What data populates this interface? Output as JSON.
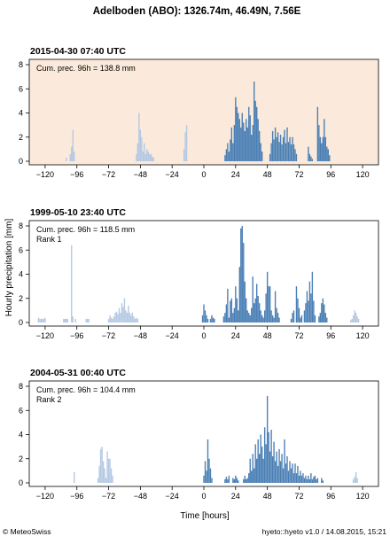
{
  "title": "Adelboden (ABO): 1326.74m, 46.49N, 7.56E",
  "ylabel": "Hourly precipitation [mm]",
  "xlabel": "Time [hours]",
  "footer_left": "© MeteoSwiss",
  "footer_right": "hyeto::hyeto v1.0 / 14.08.2015, 15:21",
  "colors": {
    "dark": "#4a7fb5",
    "light": "#b3c8e2",
    "panel_bg_highlight": "#fbeadb"
  },
  "chart_data": [
    {
      "type": "bar",
      "title": "2015-04-30 07:40 UTC",
      "annotation": "Cum. prec. 96h = 138.8 mm",
      "rank": "",
      "background": "#fbeadb",
      "xlim": [
        -132,
        132
      ],
      "ylim": [
        0,
        8
      ],
      "xticks": [
        -120,
        -96,
        -72,
        -48,
        -24,
        0,
        24,
        48,
        72,
        96,
        120
      ],
      "yticks": [
        0,
        2,
        4,
        6,
        8
      ],
      "light_bars": [
        [
          -104,
          0.3
        ],
        [
          -101,
          0.6
        ],
        [
          -100,
          1.2
        ],
        [
          -99,
          2.6
        ],
        [
          -98,
          0.8
        ],
        [
          -51,
          0.6
        ],
        [
          -50,
          1.5
        ],
        [
          -49,
          4.0
        ],
        [
          -48,
          2.6
        ],
        [
          -47,
          2.0
        ],
        [
          -46,
          0.8
        ],
        [
          -45,
          1.5
        ],
        [
          -44,
          0.6
        ],
        [
          -43,
          1.0
        ],
        [
          -42,
          0.8
        ],
        [
          -41,
          0.6
        ],
        [
          -40,
          0.6
        ],
        [
          -39,
          0.4
        ],
        [
          -38,
          0.3
        ],
        [
          -15,
          1.0
        ],
        [
          -14,
          2.4
        ],
        [
          -13,
          3.0
        ]
      ],
      "dark_bars": [
        [
          16,
          0.5
        ],
        [
          17,
          1.0
        ],
        [
          18,
          1.5
        ],
        [
          19,
          0.8
        ],
        [
          20,
          1.8
        ],
        [
          21,
          2.8
        ],
        [
          22,
          1.5
        ],
        [
          23,
          3.0
        ],
        [
          24,
          5.3
        ],
        [
          25,
          4.5
        ],
        [
          26,
          4.0
        ],
        [
          27,
          3.5
        ],
        [
          28,
          2.8
        ],
        [
          29,
          4.0
        ],
        [
          30,
          3.2
        ],
        [
          31,
          2.5
        ],
        [
          32,
          3.5
        ],
        [
          33,
          2.8
        ],
        [
          34,
          4.5
        ],
        [
          35,
          3.8
        ],
        [
          36,
          2.2
        ],
        [
          37,
          3.0
        ],
        [
          38,
          6.6
        ],
        [
          39,
          5.0
        ],
        [
          40,
          4.5
        ],
        [
          41,
          3.5
        ],
        [
          42,
          2.5
        ],
        [
          43,
          1.5
        ],
        [
          44,
          0.8
        ],
        [
          50,
          0.6
        ],
        [
          51,
          1.5
        ],
        [
          52,
          2.5
        ],
        [
          53,
          1.8
        ],
        [
          54,
          2.8
        ],
        [
          55,
          2.0
        ],
        [
          56,
          2.4
        ],
        [
          57,
          1.6
        ],
        [
          58,
          2.2
        ],
        [
          59,
          1.4
        ],
        [
          60,
          2.0
        ],
        [
          61,
          2.6
        ],
        [
          62,
          1.5
        ],
        [
          63,
          2.8
        ],
        [
          64,
          1.6
        ],
        [
          65,
          2.0
        ],
        [
          66,
          1.4
        ],
        [
          67,
          2.0
        ],
        [
          68,
          1.4
        ],
        [
          69,
          1.0
        ],
        [
          70,
          0.6
        ],
        [
          79,
          1.2
        ],
        [
          80,
          0.6
        ],
        [
          81,
          0.4
        ],
        [
          82,
          0.2
        ],
        [
          86,
          4.5
        ],
        [
          87,
          3.0
        ],
        [
          88,
          2.0
        ],
        [
          89,
          1.5
        ],
        [
          90,
          2.0
        ],
        [
          91,
          3.5
        ],
        [
          92,
          2.0
        ],
        [
          93,
          1.2
        ],
        [
          94,
          1.0
        ],
        [
          95,
          0.5
        ]
      ]
    },
    {
      "type": "bar",
      "title": "1999-05-10 23:40 UTC",
      "annotation": "Cum. prec. 96h = 118.5 mm",
      "rank": "Rank 1",
      "background": "#ffffff",
      "xlim": [
        -132,
        132
      ],
      "ylim": [
        0,
        8
      ],
      "xticks": [
        -120,
        -96,
        -72,
        -48,
        -24,
        0,
        24,
        48,
        72,
        96,
        120
      ],
      "yticks": [
        0,
        2,
        4,
        6,
        8
      ],
      "light_bars": [
        [
          -125,
          0.4
        ],
        [
          -124,
          0.3
        ],
        [
          -123,
          0.3
        ],
        [
          -122,
          0.3
        ],
        [
          -121,
          0.3
        ],
        [
          -120,
          0.4
        ],
        [
          -106,
          0.3
        ],
        [
          -105,
          0.3
        ],
        [
          -104,
          0.3
        ],
        [
          -103,
          0.3
        ],
        [
          -100,
          6.4
        ],
        [
          -99,
          0.5
        ],
        [
          -97,
          0.3
        ],
        [
          -89,
          0.3
        ],
        [
          -88,
          0.3
        ],
        [
          -87,
          0.3
        ],
        [
          -72,
          0.3
        ],
        [
          -71,
          0.6
        ],
        [
          -70,
          0.4
        ],
        [
          -69,
          0.3
        ],
        [
          -68,
          0.5
        ],
        [
          -67,
          0.8
        ],
        [
          -66,
          0.9
        ],
        [
          -65,
          0.7
        ],
        [
          -64,
          1.2
        ],
        [
          -63,
          0.8
        ],
        [
          -62,
          1.6
        ],
        [
          -61,
          1.3
        ],
        [
          -60,
          2.0
        ],
        [
          -59,
          1.0
        ],
        [
          -58,
          0.8
        ],
        [
          -57,
          1.4
        ],
        [
          -56,
          0.8
        ],
        [
          -55,
          0.6
        ],
        [
          -54,
          0.8
        ],
        [
          -53,
          0.5
        ],
        [
          -52,
          0.3
        ],
        [
          -51,
          0.4
        ],
        [
          -50,
          0.3
        ],
        [
          111,
          0.2
        ],
        [
          112,
          0.3
        ],
        [
          113,
          0.6
        ],
        [
          114,
          1.0
        ],
        [
          115,
          0.8
        ],
        [
          116,
          0.5
        ],
        [
          117,
          0.3
        ]
      ],
      "dark_bars": [
        [
          -1,
          0.6
        ],
        [
          0,
          1.5
        ],
        [
          1,
          1.0
        ],
        [
          2,
          0.6
        ],
        [
          3,
          0.3
        ],
        [
          5,
          0.3
        ],
        [
          6,
          0.6
        ],
        [
          7,
          0.4
        ],
        [
          8,
          0.3
        ],
        [
          15,
          0.5
        ],
        [
          16,
          0.8
        ],
        [
          17,
          1.5
        ],
        [
          18,
          2.8
        ],
        [
          19,
          0.4
        ],
        [
          20,
          1.8
        ],
        [
          21,
          2.0
        ],
        [
          22,
          0.8
        ],
        [
          23,
          1.2
        ],
        [
          24,
          3.0
        ],
        [
          25,
          2.0
        ],
        [
          26,
          1.0
        ],
        [
          27,
          4.6
        ],
        [
          28,
          7.8
        ],
        [
          29,
          8.0
        ],
        [
          30,
          6.6
        ],
        [
          31,
          3.4
        ],
        [
          32,
          2.0
        ],
        [
          33,
          1.0
        ],
        [
          34,
          0.8
        ],
        [
          35,
          0.6
        ],
        [
          36,
          1.2
        ],
        [
          37,
          3.8
        ],
        [
          38,
          1.6
        ],
        [
          39,
          2.0
        ],
        [
          40,
          3.2
        ],
        [
          41,
          2.2
        ],
        [
          42,
          1.6
        ],
        [
          43,
          1.0
        ],
        [
          44,
          0.6
        ],
        [
          45,
          0.4
        ],
        [
          46,
          1.0
        ],
        [
          47,
          2.4
        ],
        [
          48,
          4.2
        ],
        [
          49,
          3.0
        ],
        [
          50,
          3.0
        ],
        [
          51,
          1.0
        ],
        [
          52,
          0.6
        ],
        [
          53,
          0.4
        ],
        [
          54,
          2.6
        ],
        [
          55,
          1.2
        ],
        [
          56,
          0.8
        ],
        [
          57,
          0.4
        ],
        [
          66,
          0.3
        ],
        [
          67,
          0.8
        ],
        [
          68,
          1.0
        ],
        [
          70,
          3.0
        ],
        [
          71,
          2.0
        ],
        [
          72,
          1.2
        ],
        [
          73,
          0.4
        ],
        [
          74,
          0.6
        ],
        [
          76,
          1.0
        ],
        [
          77,
          1.6
        ],
        [
          78,
          2.6
        ],
        [
          79,
          1.8
        ],
        [
          80,
          3.4
        ],
        [
          81,
          2.4
        ],
        [
          82,
          4.2
        ],
        [
          83,
          1.8
        ],
        [
          84,
          0.6
        ],
        [
          87,
          0.5
        ],
        [
          88,
          0.8
        ],
        [
          89,
          1.6
        ],
        [
          90,
          2.0
        ],
        [
          91,
          1.5
        ],
        [
          92,
          0.8
        ],
        [
          93,
          0.4
        ]
      ]
    },
    {
      "type": "bar",
      "title": "2004-05-31 00:40 UTC",
      "annotation": "Cum. prec. 96h = 104.4 mm",
      "rank": "Rank 2",
      "background": "#ffffff",
      "xlim": [
        -132,
        132
      ],
      "ylim": [
        0,
        8
      ],
      "xticks": [
        -120,
        -96,
        -72,
        -48,
        -24,
        0,
        24,
        48,
        72,
        96,
        120
      ],
      "yticks": [
        0,
        2,
        4,
        6,
        8
      ],
      "light_bars": [
        [
          -98,
          0.9
        ],
        [
          -80,
          0.4
        ],
        [
          -79,
          1.4
        ],
        [
          -78,
          2.8
        ],
        [
          -77,
          3.0
        ],
        [
          -76,
          1.8
        ],
        [
          -75,
          1.2
        ],
        [
          -74,
          0.4
        ],
        [
          -73,
          2.6
        ],
        [
          -72,
          2.0
        ],
        [
          -71,
          2.0
        ],
        [
          -70,
          1.2
        ],
        [
          -69,
          0.6
        ],
        [
          113,
          0.3
        ],
        [
          114,
          0.5
        ],
        [
          115,
          0.9
        ],
        [
          116,
          0.4
        ]
      ],
      "dark_bars": [
        [
          0,
          0.6
        ],
        [
          1,
          1.8
        ],
        [
          2,
          1.0
        ],
        [
          3,
          3.6
        ],
        [
          4,
          2.0
        ],
        [
          5,
          1.2
        ],
        [
          6,
          0.4
        ],
        [
          16,
          0.3
        ],
        [
          17,
          0.5
        ],
        [
          18,
          0.3
        ],
        [
          19,
          0.6
        ],
        [
          22,
          0.4
        ],
        [
          23,
          0.3
        ],
        [
          24,
          0.6
        ],
        [
          25,
          0.4
        ],
        [
          26,
          0.2
        ],
        [
          30,
          0.3
        ],
        [
          31,
          0.6
        ],
        [
          32,
          0.3
        ],
        [
          33,
          0.4
        ],
        [
          34,
          0.8
        ],
        [
          35,
          2.0
        ],
        [
          36,
          1.0
        ],
        [
          37,
          2.4
        ],
        [
          38,
          1.2
        ],
        [
          39,
          3.2
        ],
        [
          40,
          2.0
        ],
        [
          41,
          3.6
        ],
        [
          42,
          2.4
        ],
        [
          43,
          4.0
        ],
        [
          44,
          3.0
        ],
        [
          45,
          2.0
        ],
        [
          46,
          4.6
        ],
        [
          47,
          3.2
        ],
        [
          48,
          7.2
        ],
        [
          49,
          4.2
        ],
        [
          50,
          2.6
        ],
        [
          51,
          4.4
        ],
        [
          52,
          2.2
        ],
        [
          53,
          3.4
        ],
        [
          54,
          1.8
        ],
        [
          55,
          2.6
        ],
        [
          56,
          1.4
        ],
        [
          57,
          2.8
        ],
        [
          58,
          1.8
        ],
        [
          59,
          2.4
        ],
        [
          60,
          1.2
        ],
        [
          61,
          3.6
        ],
        [
          62,
          1.6
        ],
        [
          63,
          2.2
        ],
        [
          64,
          1.0
        ],
        [
          65,
          1.8
        ],
        [
          66,
          1.2
        ],
        [
          67,
          1.6
        ],
        [
          68,
          0.8
        ],
        [
          69,
          1.6
        ],
        [
          70,
          0.8
        ],
        [
          71,
          1.4
        ],
        [
          72,
          0.6
        ],
        [
          73,
          1.0
        ],
        [
          74,
          0.6
        ],
        [
          75,
          0.8
        ],
        [
          76,
          0.4
        ],
        [
          77,
          0.6
        ],
        [
          78,
          0.3
        ],
        [
          79,
          0.6
        ],
        [
          80,
          0.3
        ],
        [
          81,
          0.8
        ],
        [
          82,
          0.3
        ],
        [
          83,
          0.5
        ],
        [
          84,
          0.6
        ],
        [
          85,
          0.3
        ],
        [
          86,
          0.4
        ],
        [
          89,
          0.4
        ],
        [
          90,
          0.2
        ]
      ]
    }
  ]
}
